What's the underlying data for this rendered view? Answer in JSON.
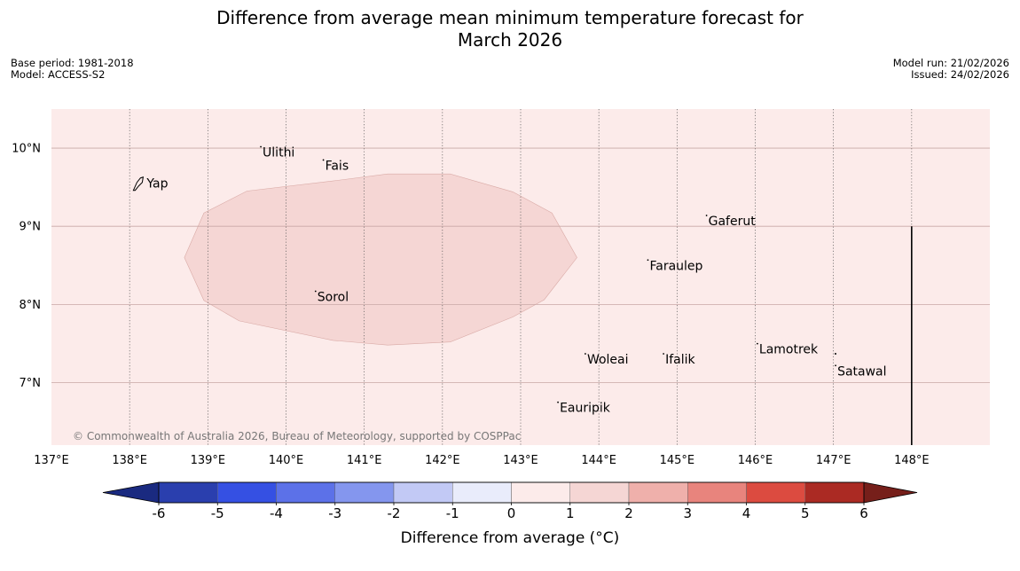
{
  "title": {
    "line1": "Difference from average mean minimum temperature forecast for",
    "line2": "March 2026"
  },
  "meta_left": {
    "base_period": "Base period: 1981-2018",
    "model": "Model: ACCESS-S2"
  },
  "meta_right": {
    "model_run": "Model run: 21/02/2026",
    "issued": "Issued: 24/02/2026"
  },
  "map": {
    "lon_range": [
      137,
      149
    ],
    "lat_range": [
      6.2,
      10.5
    ],
    "lat_ticks": [
      {
        "value": 10,
        "label": "10°N"
      },
      {
        "value": 9,
        "label": "9°N"
      },
      {
        "value": 8,
        "label": "8°N"
      },
      {
        "value": 7,
        "label": "7°N"
      }
    ],
    "lon_ticks": [
      {
        "value": 137,
        "label": "137°E"
      },
      {
        "value": 138,
        "label": "138°E"
      },
      {
        "value": 139,
        "label": "139°E"
      },
      {
        "value": 140,
        "label": "140°E"
      },
      {
        "value": 141,
        "label": "141°E"
      },
      {
        "value": 142,
        "label": "142°E"
      },
      {
        "value": 143,
        "label": "143°E"
      },
      {
        "value": 144,
        "label": "144°E"
      },
      {
        "value": 145,
        "label": "145°E"
      },
      {
        "value": 146,
        "label": "146°E"
      },
      {
        "value": 147,
        "label": "147°E"
      },
      {
        "value": 148,
        "label": "148°E"
      }
    ],
    "places": [
      {
        "name": "Yap",
        "lon": 138.15,
        "lat": 9.55
      },
      {
        "name": "Ulithi",
        "lon": 139.7,
        "lat": 9.95
      },
      {
        "name": "Fais",
        "lon": 140.5,
        "lat": 9.78
      },
      {
        "name": "Gaferut",
        "lon": 145.4,
        "lat": 9.07
      },
      {
        "name": "Faraulep",
        "lon": 144.65,
        "lat": 8.5
      },
      {
        "name": "Sorol",
        "lon": 140.4,
        "lat": 8.1
      },
      {
        "name": "Lamotrek",
        "lon": 146.05,
        "lat": 7.43
      },
      {
        "name": "Satawal",
        "lon": 147.05,
        "lat": 7.15
      },
      {
        "name": "Woleai",
        "lon": 143.85,
        "lat": 7.3
      },
      {
        "name": "Ifalik",
        "lon": 144.85,
        "lat": 7.3
      },
      {
        "name": "Eauripik",
        "lon": 143.5,
        "lat": 6.68
      }
    ],
    "anomaly_region": {
      "class": "1 to 2",
      "polygon_lonlat": [
        [
          140.6,
          9.58
        ],
        [
          141.3,
          9.67
        ],
        [
          142.1,
          9.67
        ],
        [
          142.9,
          9.44
        ],
        [
          143.4,
          9.17
        ],
        [
          143.72,
          8.6
        ],
        [
          143.3,
          8.06
        ],
        [
          142.9,
          7.84
        ],
        [
          142.1,
          7.52
        ],
        [
          141.3,
          7.48
        ],
        [
          140.6,
          7.54
        ],
        [
          139.4,
          7.79
        ],
        [
          138.95,
          8.05
        ],
        [
          138.7,
          8.6
        ],
        [
          138.95,
          9.17
        ],
        [
          139.5,
          9.45
        ]
      ]
    },
    "boundary_line": {
      "lon": 148,
      "lat_from": 6.2,
      "lat_to": 9.0
    },
    "copyright": "© Commonwealth of Australia 2026, Bureau of Meteorology, supported by COSPPac"
  },
  "colorbar": {
    "labels": [
      "-6",
      "-5",
      "-4",
      "-3",
      "-2",
      "-1",
      "0",
      "1",
      "2",
      "3",
      "4",
      "5",
      "6"
    ],
    "colors": [
      "#2a3fae",
      "#3550e3",
      "#5c71e8",
      "#8496ee",
      "#c2c9f5",
      "#e9ecfb",
      "#fcebea",
      "#f5d6d4",
      "#efb0ab",
      "#e8847d",
      "#dc4b40",
      "#ab2a23"
    ],
    "under_color": "#1a2a80",
    "over_color": "#761f1a",
    "title": "Difference from average (°C)",
    "background_color": "#fcebea",
    "region_color": "#f5d6d4"
  }
}
